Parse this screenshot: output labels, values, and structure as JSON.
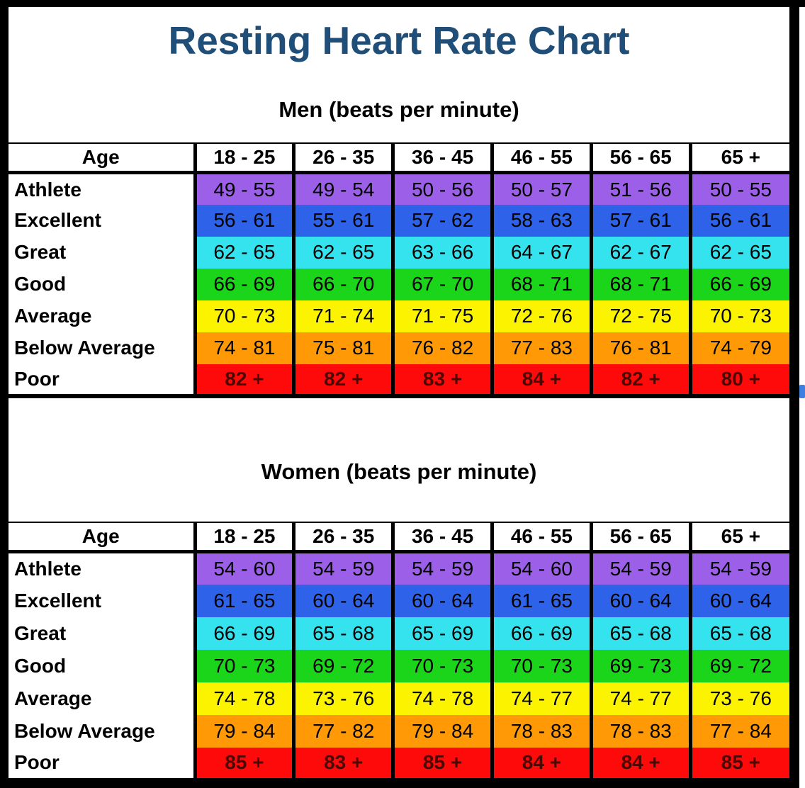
{
  "title": "Resting Heart Rate Chart",
  "colors": {
    "title_text": "#1F4E79",
    "frame": "#000000",
    "athlete": "#9C5FE8",
    "excellent": "#2E62E8",
    "great": "#35E3EE",
    "good": "#1BD51B",
    "average": "#FBF300",
    "below_average": "#FF9905",
    "poor": "#FF0A0A",
    "poor_text": "#4A0800",
    "edge_artifact_blue": "#3F7FE0"
  },
  "sections": [
    {
      "heading": "Men (beats per minute)",
      "age_header_label": "Age",
      "age_columns": [
        "18 - 25",
        "26 - 35",
        "36 - 45",
        "46 - 55",
        "56 - 65",
        "65 +"
      ],
      "rows": [
        {
          "label": "Athlete",
          "values": [
            "49 - 55",
            "49 - 54",
            "50 - 56",
            "50 - 57",
            "51 - 56",
            "50 - 55"
          ]
        },
        {
          "label": "Excellent",
          "values": [
            "56 - 61",
            "55 - 61",
            "57 - 62",
            "58 - 63",
            "57 - 61",
            "56 - 61"
          ]
        },
        {
          "label": "Great",
          "values": [
            "62 - 65",
            "62 - 65",
            "63 - 66",
            "64 - 67",
            "62 - 67",
            "62 - 65"
          ]
        },
        {
          "label": "Good",
          "values": [
            "66 - 69",
            "66 - 70",
            "67 - 70",
            "68 - 71",
            "68 - 71",
            "66 - 69"
          ]
        },
        {
          "label": "Average",
          "values": [
            "70 - 73",
            "71 - 74",
            "71 - 75",
            "72 - 76",
            "72 - 75",
            "70 - 73"
          ]
        },
        {
          "label": "Below Average",
          "values": [
            "74 - 81",
            "75 - 81",
            "76 - 82",
            "77 - 83",
            "76 - 81",
            "74 - 79"
          ]
        },
        {
          "label": "Poor",
          "values": [
            "82 +",
            "82 +",
            "83 +",
            "84 +",
            "82 +",
            "80 +"
          ]
        }
      ]
    },
    {
      "heading": "Women (beats per minute)",
      "age_header_label": "Age",
      "age_columns": [
        "18 - 25",
        "26 - 35",
        "36 - 45",
        "46 - 55",
        "56 - 65",
        "65 +"
      ],
      "rows": [
        {
          "label": "Athlete",
          "values": [
            "54 - 60",
            "54 - 59",
            "54 - 59",
            "54 - 60",
            "54 - 59",
            "54 - 59"
          ]
        },
        {
          "label": "Excellent",
          "values": [
            "61 - 65",
            "60 - 64",
            "60 - 64",
            "61 - 65",
            "60 - 64",
            "60 - 64"
          ]
        },
        {
          "label": "Great",
          "values": [
            "66 - 69",
            "65 - 68",
            "65 - 69",
            "66 - 69",
            "65 - 68",
            "65 - 68"
          ]
        },
        {
          "label": "Good",
          "values": [
            "70 - 73",
            "69 - 72",
            "70 - 73",
            "70 - 73",
            "69 - 73",
            "69 - 72"
          ]
        },
        {
          "label": "Average",
          "values": [
            "74 - 78",
            "73 - 76",
            "74 - 78",
            "74 - 77",
            "74 - 77",
            "73 - 76"
          ]
        },
        {
          "label": "Below Average",
          "values": [
            "79 - 84",
            "77 - 82",
            "79 - 84",
            "78 - 83",
            "78 - 83",
            "77 - 84"
          ]
        },
        {
          "label": "Poor",
          "values": [
            "85 +",
            "83 +",
            "85 +",
            "84 +",
            "84 +",
            "85 +"
          ]
        }
      ]
    }
  ],
  "chart_data": [
    {
      "type": "table",
      "title": "Men (beats per minute)",
      "columns": [
        "Age",
        "18 - 25",
        "26 - 35",
        "36 - 45",
        "46 - 55",
        "56 - 65",
        "65 +"
      ],
      "rows": [
        [
          "Athlete",
          "49 - 55",
          "49 - 54",
          "50 - 56",
          "50 - 57",
          "51 - 56",
          "50 - 55"
        ],
        [
          "Excellent",
          "56 - 61",
          "55 - 61",
          "57 - 62",
          "58 - 63",
          "57 - 61",
          "56 - 61"
        ],
        [
          "Great",
          "62 - 65",
          "62 - 65",
          "63 - 66",
          "64 - 67",
          "62 - 67",
          "62 - 65"
        ],
        [
          "Good",
          "66 - 69",
          "66 - 70",
          "67 - 70",
          "68 - 71",
          "68 - 71",
          "66 - 69"
        ],
        [
          "Average",
          "70 - 73",
          "71 - 74",
          "71 - 75",
          "72 - 76",
          "72 - 75",
          "70 - 73"
        ],
        [
          "Below Average",
          "74 - 81",
          "75 - 81",
          "76 - 82",
          "77 - 83",
          "76 - 81",
          "74 - 79"
        ],
        [
          "Poor",
          "82 +",
          "82 +",
          "83 +",
          "84 +",
          "82 +",
          "80 +"
        ]
      ],
      "row_colors": [
        "#9C5FE8",
        "#2E62E8",
        "#35E3EE",
        "#1BD51B",
        "#FBF300",
        "#FF9905",
        "#FF0A0A"
      ]
    },
    {
      "type": "table",
      "title": "Women (beats per minute)",
      "columns": [
        "Age",
        "18 - 25",
        "26 - 35",
        "36 - 45",
        "46 - 55",
        "56 - 65",
        "65 +"
      ],
      "rows": [
        [
          "Athlete",
          "54 - 60",
          "54 - 59",
          "54 - 59",
          "54 - 60",
          "54 - 59",
          "54 - 59"
        ],
        [
          "Excellent",
          "61 - 65",
          "60 - 64",
          "60 - 64",
          "61 - 65",
          "60 - 64",
          "60 - 64"
        ],
        [
          "Great",
          "66 - 69",
          "65 - 68",
          "65 - 69",
          "66 - 69",
          "65 - 68",
          "65 - 68"
        ],
        [
          "Good",
          "70 - 73",
          "69 - 72",
          "70 - 73",
          "70 - 73",
          "69 - 73",
          "69 - 72"
        ],
        [
          "Average",
          "74 - 78",
          "73 - 76",
          "74 - 78",
          "74 - 77",
          "74 - 77",
          "73 - 76"
        ],
        [
          "Below Average",
          "79 - 84",
          "77 - 82",
          "79 - 84",
          "78 - 83",
          "78 - 83",
          "77 - 84"
        ],
        [
          "Poor",
          "85 +",
          "83 +",
          "85 +",
          "84 +",
          "84 +",
          "85 +"
        ]
      ],
      "row_colors": [
        "#9C5FE8",
        "#2E62E8",
        "#35E3EE",
        "#1BD51B",
        "#FBF300",
        "#FF9905",
        "#FF0A0A"
      ]
    }
  ]
}
